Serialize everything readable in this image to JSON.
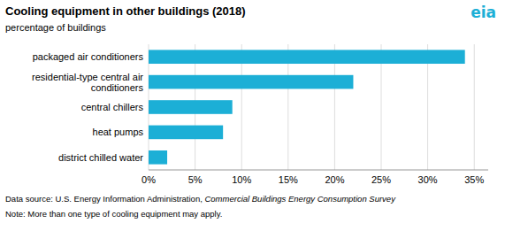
{
  "chart_data": {
    "type": "bar",
    "orientation": "horizontal",
    "title": "Cooling equipment in other buildings (2018)",
    "subtitle": "percentage of buildings",
    "categories": [
      "district chilled water",
      "heat pumps",
      "central chillers",
      "residential-type central air\n        conditioners",
      "packaged air conditioners"
    ],
    "values": [
      2,
      8,
      9,
      22,
      34
    ],
    "color": "#1cafd6",
    "xlim": [
      0,
      36.5
    ],
    "xticks": [
      {
        "value": 0,
        "label": "0%"
      },
      {
        "value": 5,
        "label": "5%"
      },
      {
        "value": 10,
        "label": "10%"
      },
      {
        "value": 15,
        "label": "15%"
      },
      {
        "value": 20,
        "label": "20%"
      },
      {
        "value": 25,
        "label": "25%"
      },
      {
        "value": 30,
        "label": "30%"
      },
      {
        "value": 35,
        "label": "35%"
      }
    ],
    "grid": true,
    "annotations": [
      "eia",
      "Data source: U.S. Energy Information Administration, ",
      "Commercial Buildings Energy Consumption Survey",
      "Note: More than one type of cooling equipment may apply."
    ]
  }
}
